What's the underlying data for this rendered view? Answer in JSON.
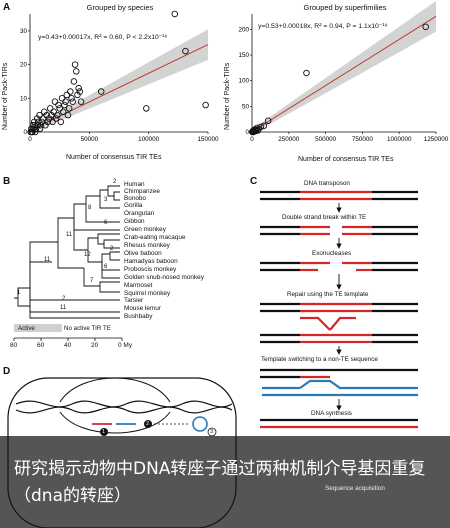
{
  "panel_labels": {
    "a": "A",
    "b": "B",
    "c": "C",
    "d": "D"
  },
  "chart_data": [
    {
      "type": "scatter",
      "title": "Grouped by species",
      "xlabel": "Number of consensus TIR TEs",
      "ylabel": "Number of Pack-TIRs",
      "equation": "y=0.43+0.00017x, R² = 0.60, P < 2.2x10⁻¹⁶",
      "xticks": [
        "0",
        "50000",
        "100000",
        "150000"
      ],
      "yticks": [
        "0",
        "10",
        "20",
        "30"
      ],
      "xlim": [
        0,
        150000
      ],
      "ylim": [
        0,
        35
      ],
      "fit": {
        "intercept": 0.43,
        "slope": 0.00017
      },
      "points": [
        [
          500,
          0
        ],
        [
          1200,
          1
        ],
        [
          2000,
          0
        ],
        [
          2500,
          2
        ],
        [
          3000,
          1
        ],
        [
          3500,
          3
        ],
        [
          4000,
          2
        ],
        [
          5000,
          1
        ],
        [
          6000,
          4
        ],
        [
          6500,
          2
        ],
        [
          7000,
          3
        ],
        [
          8000,
          5
        ],
        [
          9000,
          2
        ],
        [
          10000,
          3
        ],
        [
          11000,
          4
        ],
        [
          12000,
          6
        ],
        [
          13000,
          2
        ],
        [
          14000,
          5
        ],
        [
          15000,
          3
        ],
        [
          16000,
          4
        ],
        [
          17000,
          7
        ],
        [
          18000,
          5
        ],
        [
          19000,
          3
        ],
        [
          20000,
          6
        ],
        [
          21000,
          9
        ],
        [
          22000,
          4
        ],
        [
          23000,
          5
        ],
        [
          24000,
          8
        ],
        [
          25000,
          7
        ],
        [
          26000,
          3
        ],
        [
          27000,
          10
        ],
        [
          28000,
          6
        ],
        [
          29000,
          8
        ],
        [
          30000,
          9
        ],
        [
          31000,
          11
        ],
        [
          32000,
          5
        ],
        [
          33000,
          7
        ],
        [
          34000,
          12
        ],
        [
          35000,
          10
        ],
        [
          36000,
          9
        ],
        [
          37000,
          15
        ],
        [
          38000,
          20
        ],
        [
          39000,
          18
        ],
        [
          40000,
          11
        ],
        [
          41000,
          13
        ],
        [
          42000,
          12
        ],
        [
          43000,
          9
        ],
        [
          60000,
          12
        ],
        [
          98000,
          7
        ],
        [
          122000,
          35
        ],
        [
          131000,
          24
        ],
        [
          148000,
          8
        ],
        [
          1500,
          0
        ],
        [
          4500,
          0
        ],
        [
          8500,
          1
        ]
      ]
    },
    {
      "type": "scatter",
      "title": "Grouped by superfimilies",
      "xlabel": "Number of consensus TIR TEs",
      "ylabel": "Number of Pack-TIRs",
      "equation": "y=0.53+0.00018x, R² = 0.94, P = 1.1x10⁻¹⁹",
      "xticks": [
        "0",
        "250000",
        "500000",
        "750000",
        "1000000",
        "1250000"
      ],
      "yticks": [
        "0",
        "50",
        "100",
        "150",
        "200"
      ],
      "xlim": [
        0,
        1250000
      ],
      "ylim": [
        0,
        230
      ],
      "fit": {
        "intercept": 0.53,
        "slope": 0.00018
      },
      "points": [
        [
          2000,
          0
        ],
        [
          4000,
          1
        ],
        [
          6000,
          2
        ],
        [
          9000,
          0
        ],
        [
          12000,
          3
        ],
        [
          15000,
          1
        ],
        [
          20000,
          5
        ],
        [
          25000,
          2
        ],
        [
          30000,
          4
        ],
        [
          35000,
          8
        ],
        [
          40000,
          3
        ],
        [
          45000,
          6
        ],
        [
          60000,
          10
        ],
        [
          80000,
          12
        ],
        [
          110000,
          22
        ],
        [
          370000,
          115
        ],
        [
          1180000,
          205
        ]
      ]
    }
  ],
  "tree": {
    "species": [
      "Human",
      "Chimpanzee",
      "Bonobo",
      "Gorilla",
      "Orangutan",
      "Gibbon",
      "Green monkey",
      "Crab-eating macaque",
      "Rhesus monkey",
      "Olive baboon",
      "Hamadyas baboon",
      "Proboscis monkey",
      "Golden snub-nosed monkey",
      "Marmoset",
      "Squirrel monkey",
      "Tarsier",
      "Mouse lemur",
      "Bushbaby"
    ],
    "node_counts": [
      "2",
      "3",
      "8",
      "6",
      "11",
      "12",
      "11",
      "6",
      "7",
      "2",
      "1",
      "2",
      "11",
      "2",
      "2"
    ],
    "legend_active": "Active",
    "legend_inactive": "No active TIR TE",
    "axis_ticks": [
      "80",
      "60",
      "40",
      "20",
      "0 My"
    ]
  },
  "mechanism_steps": [
    "DNA transposon",
    "Double strand break within TE",
    "Exonucleases",
    "Repair using the TE template",
    "Template switching to a non-TE sequence",
    "DNA synthesis",
    "Sequence acquisition"
  ],
  "diagram_d_markers": [
    "1",
    "2",
    "3"
  ],
  "banner": {
    "text": "研究揭示动物中DNA转座子通过两种机制介导基因重复（dna的转座）"
  },
  "colors": {
    "fit_line": "#c0392b",
    "ci_band": "#c8c8c8",
    "te_red": "#d62728",
    "seq_blue": "#2a7ab8",
    "banner_bg": "#1a1a1a"
  }
}
